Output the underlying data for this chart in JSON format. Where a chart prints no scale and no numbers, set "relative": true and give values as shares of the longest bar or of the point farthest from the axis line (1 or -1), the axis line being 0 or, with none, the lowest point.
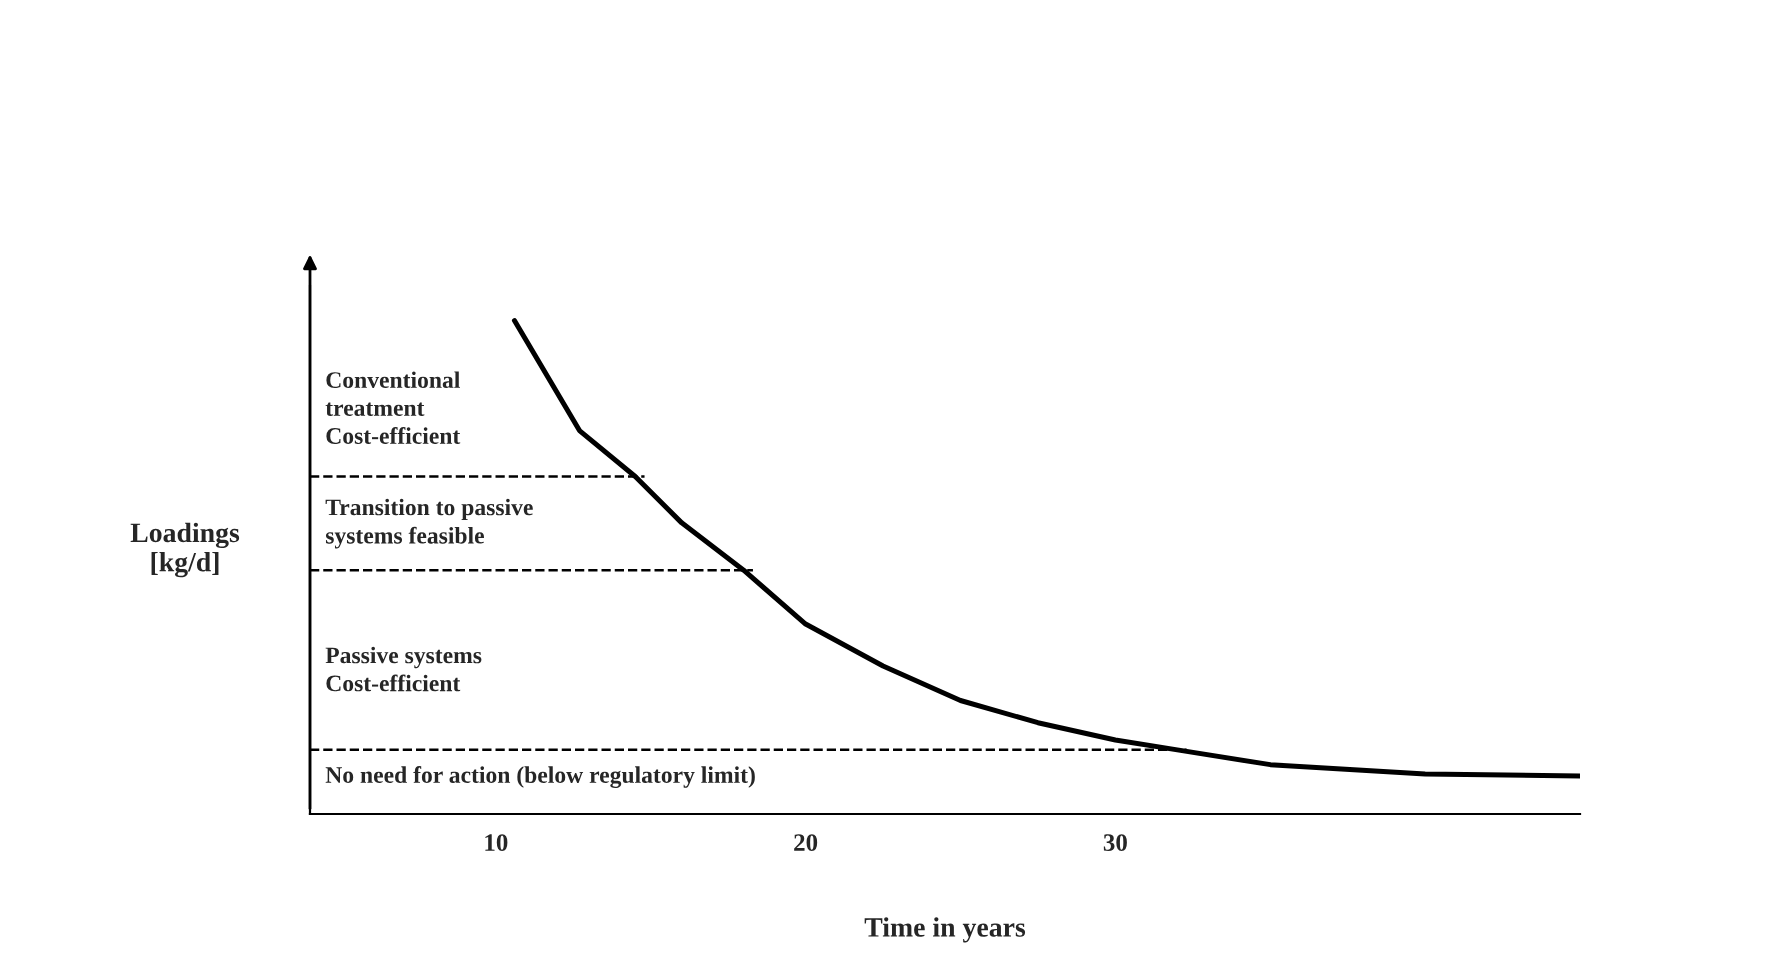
{
  "chart_data": {
    "type": "line",
    "relative": true,
    "xlabel": "Time in years",
    "ylabel": "Loadings\n[kg/d]",
    "xlim": [
      4,
      45
    ],
    "xticks": [
      10,
      20,
      30
    ],
    "grid": false,
    "marker": "none",
    "line_style": "solid",
    "series": [
      {
        "color": "#000000",
        "x": [
          10.6,
          12.7,
          14.5,
          16,
          18,
          20,
          22.5,
          25,
          27.5,
          30,
          32,
          35,
          40,
          45
        ],
        "values": [
          1.0,
          0.777,
          0.684,
          0.59,
          0.494,
          0.385,
          0.3,
          0.23,
          0.185,
          0.15,
          0.13,
          0.1,
          0.081,
          0.077
        ]
      }
    ],
    "ref_lines": [
      {
        "axis": "y",
        "value": 0.684,
        "line_style": "dashed",
        "color": "#000000"
      },
      {
        "axis": "y",
        "value": 0.494,
        "line_style": "dashed",
        "color": "#000000"
      },
      {
        "axis": "y",
        "value": 0.13,
        "line_style": "dashed",
        "color": "#000000"
      }
    ],
    "annotations": [
      "Conventional\ntreatment\nCost-efficient",
      "Transition to passive\nsystems feasible",
      "Passive systems\nCost-efficient",
      "No need for action (below regulatory limit)"
    ]
  }
}
